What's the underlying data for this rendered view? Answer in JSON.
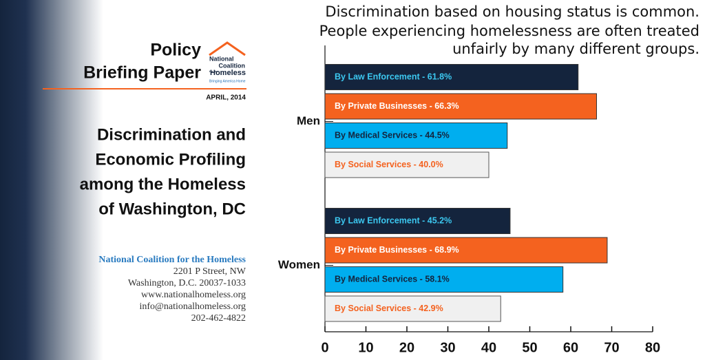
{
  "cover": {
    "heading": [
      "Policy",
      "Briefing Paper"
    ],
    "logo": [
      "National",
      "Coalition",
      "for the",
      "Homeless",
      "Bringing America Home"
    ],
    "date": "APRIL, 2014",
    "title": [
      "Discrimination and",
      "Economic Profiling",
      "among the Homeless",
      "of Washington, DC"
    ],
    "org": "National Coalition for the Homeless",
    "address": [
      "2201 P Street, NW",
      "Washington, D.C. 20037-1033",
      "www.nationalhomeless.org",
      "info@nationalhomeless.org",
      "202-462-4822"
    ]
  },
  "chart_data": {
    "type": "bar",
    "orientation": "horizontal",
    "title": [
      "Discrimination based on housing status is common.",
      "People experiencing homelessness are often treated",
      "unfairly by many different groups."
    ],
    "categories": [
      "Men",
      "Women"
    ],
    "series": [
      {
        "color": "#14243d",
        "label_color": "#3cc8f0",
        "values": [
          61.8,
          45.2
        ],
        "value_labels": [
          "By Law Enforcement - 61.8%",
          "By Law Enforcement - 45.2%"
        ]
      },
      {
        "color": "#f4621f",
        "label_color": "#ffffff",
        "values": [
          66.3,
          68.9
        ],
        "value_labels": [
          "By Private Businesses - 66.3%",
          "By Private Businesses - 68.9%"
        ]
      },
      {
        "color": "#00aeef",
        "label_color": "#14243d",
        "values": [
          44.5,
          58.1
        ],
        "value_labels": [
          "By Medical Services - 44.5%",
          "By Medical Services - 58.1%"
        ]
      },
      {
        "color": "#f0f0f0",
        "label_color": "#f4621f",
        "values": [
          40.0,
          42.9
        ],
        "value_labels": [
          "By Social Services - 40.0%",
          "By Social Services - 42.9%"
        ]
      }
    ],
    "xlim": [
      0,
      80
    ],
    "xticks": [
      0,
      10,
      20,
      30,
      40,
      50,
      60,
      70,
      80
    ]
  }
}
